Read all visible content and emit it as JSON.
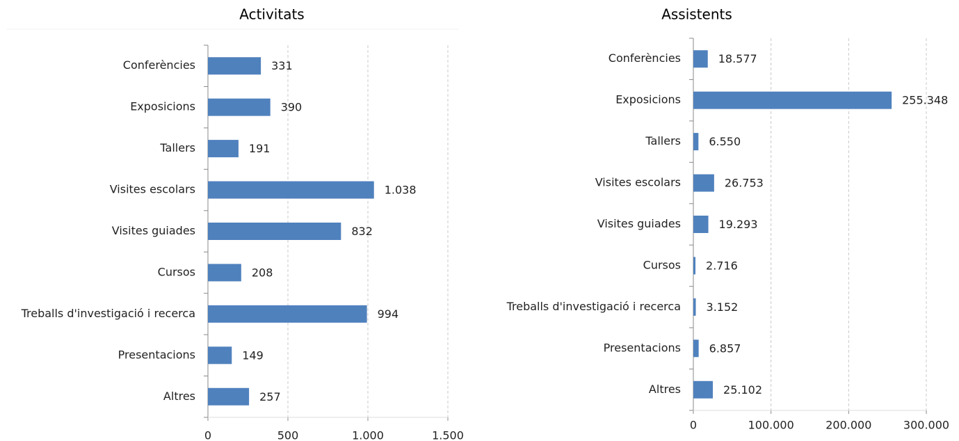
{
  "chart_data": [
    {
      "type": "barh",
      "title": "Activitats",
      "categories": [
        "Conferències",
        "Exposicions",
        "Tallers",
        "Visites escolars",
        "Visites guiades",
        "Cursos",
        "Treballs d'investigació i recerca",
        "Presentacions",
        "Altres"
      ],
      "values": [
        331,
        390,
        191,
        1038,
        832,
        208,
        994,
        149,
        257
      ],
      "value_labels": [
        "331",
        "390",
        "191",
        "1.038",
        "832",
        "208",
        "994",
        "149",
        "257"
      ],
      "color": "#4f81bd",
      "xlim": [
        0,
        1500
      ],
      "xticks": [
        0,
        500,
        {
          "value": 1000,
          "label": "1.000"
        },
        {
          "value": 1500,
          "label": "1.500"
        }
      ],
      "grid": true
    },
    {
      "type": "barh",
      "title": "Assistents",
      "categories": [
        "Conferències",
        "Exposicions",
        "Tallers",
        "Visites escolars",
        "Visites guiades",
        "Cursos",
        "Treballs d'investigació i recerca",
        "Presentacions",
        "Altres"
      ],
      "values": [
        18577,
        255348,
        6550,
        26753,
        19293,
        2716,
        3152,
        6857,
        25102
      ],
      "value_labels": [
        "18.577",
        "255.348",
        "6.550",
        "26.753",
        "19.293",
        "2.716",
        "3.152",
        "6.857",
        "25.102"
      ],
      "color": "#4f81bd",
      "xlim": [
        0,
        300000
      ],
      "xticks": [
        0,
        {
          "value": 100000,
          "label": "100.000"
        },
        {
          "value": 200000,
          "label": "200.000"
        },
        {
          "value": 300000,
          "label": "300.000"
        }
      ],
      "grid": true
    }
  ]
}
